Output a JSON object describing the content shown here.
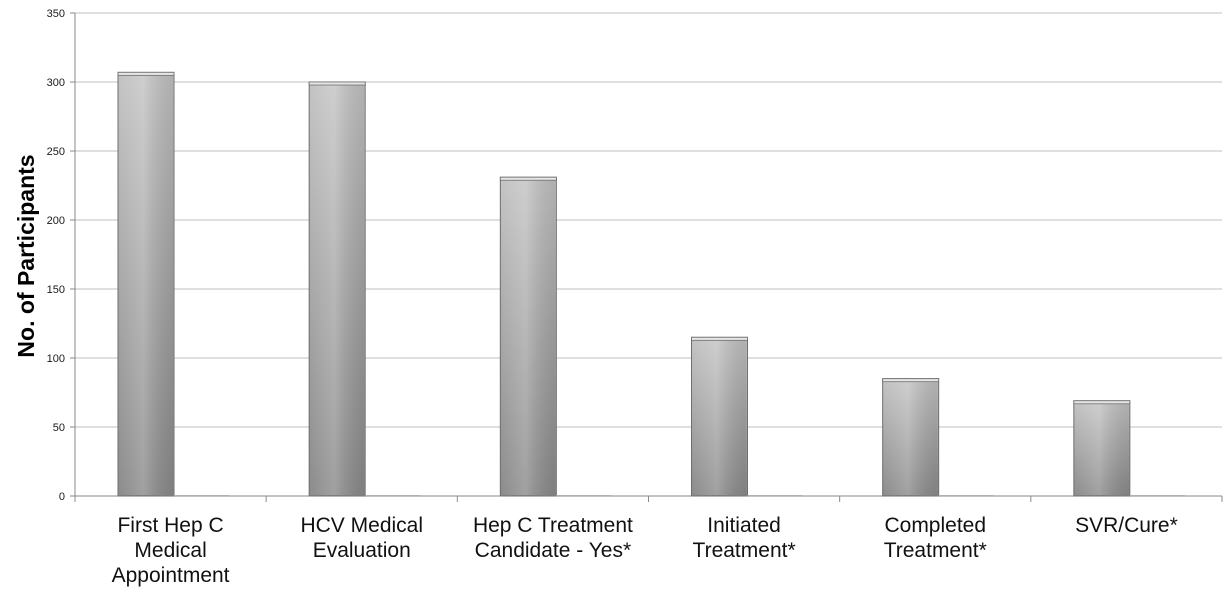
{
  "chart_data": {
    "type": "bar",
    "title": "",
    "xlabel": "",
    "ylabel": "No. of Participants",
    "ylim": [
      0,
      350
    ],
    "yticks": [
      0,
      50,
      100,
      150,
      200,
      250,
      300,
      350
    ],
    "grid": true,
    "legend": "none",
    "categories": [
      [
        "First Hep C",
        "Medical",
        "Appointment"
      ],
      [
        "HCV Medical",
        "Evaluation"
      ],
      [
        "Hep C Treatment",
        "Candidate - Yes*"
      ],
      [
        "Initiated",
        "Treatment*"
      ],
      [
        "Completed",
        "Treatment*"
      ],
      [
        "SVR/Cure*"
      ]
    ],
    "series": [
      {
        "values": [
          307,
          300,
          231,
          115,
          85,
          69
        ]
      }
    ],
    "colors": {
      "bar_edge": "#6e6e6e",
      "bar_light": "#c4c4c4",
      "bar_dark": "#8c8c8c",
      "grid": "#bfbfbf",
      "axis": "#8a8a8a"
    }
  }
}
